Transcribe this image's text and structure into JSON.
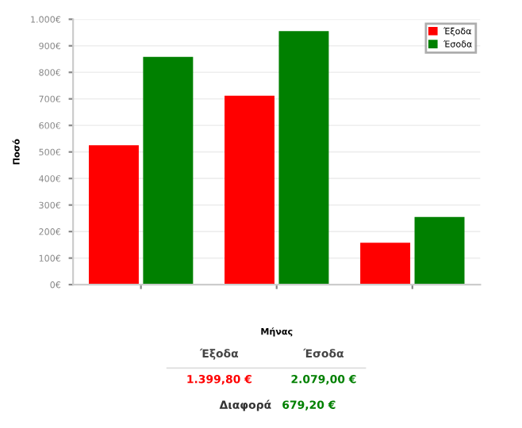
{
  "chart_data": {
    "type": "bar",
    "xlabel": "Μήνας",
    "ylabel": "Ποσό",
    "categories": [
      null,
      null,
      null
    ],
    "series": [
      {
        "name": "Έξοδα",
        "color": "#ff0000",
        "values": [
          525,
          712,
          158
        ]
      },
      {
        "name": "Έσοδα",
        "color": "#008000",
        "values": [
          858,
          955,
          255
        ]
      }
    ],
    "ylim": [
      0,
      1000
    ],
    "yticks": [
      {
        "value": 0,
        "label": "0€"
      },
      {
        "value": 100,
        "label": "100€"
      },
      {
        "value": 200,
        "label": "200€"
      },
      {
        "value": 300,
        "label": "300€"
      },
      {
        "value": 400,
        "label": "400€"
      },
      {
        "value": 500,
        "label": "500€"
      },
      {
        "value": 600,
        "label": "600€"
      },
      {
        "value": 700,
        "label": "700€"
      },
      {
        "value": 800,
        "label": "800€"
      },
      {
        "value": 900,
        "label": "900€"
      },
      {
        "value": 1000,
        "label": "1.000€"
      }
    ],
    "grid": "y",
    "legend": "top right",
    "annotations": [
      "Έξοδα",
      "Έσοδα",
      "1.399,80 €",
      "2.079,00 €",
      "Διαφορά",
      "679,20 €"
    ]
  }
}
